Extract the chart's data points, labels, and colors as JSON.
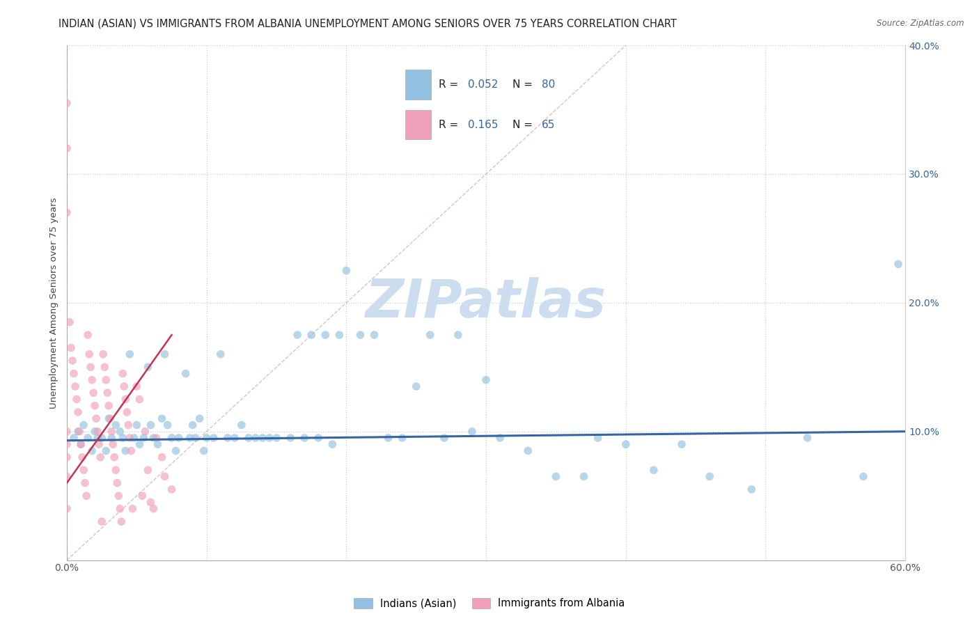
{
  "title": "INDIAN (ASIAN) VS IMMIGRANTS FROM ALBANIA UNEMPLOYMENT AMONG SENIORS OVER 75 YEARS CORRELATION CHART",
  "source": "Source: ZipAtlas.com",
  "ylabel": "Unemployment Among Seniors over 75 years",
  "xlim": [
    0,
    0.6
  ],
  "ylim": [
    0,
    0.4
  ],
  "xtick_vals": [
    0.0,
    0.1,
    0.2,
    0.3,
    0.4,
    0.5,
    0.6
  ],
  "xtick_labels": [
    "0.0%",
    "",
    "",
    "",
    "",
    "",
    "60.0%"
  ],
  "ytick_vals_right": [
    0.1,
    0.2,
    0.3,
    0.4
  ],
  "ytick_labels_right": [
    "10.0%",
    "20.0%",
    "30.0%",
    "40.0%"
  ],
  "color_blue": "#92c0e0",
  "color_pink": "#f0a0b8",
  "color_blue_dark": "#3465a4",
  "color_pink_dark": "#c83050",
  "color_diag": "#c8a0a8",
  "scatter_alpha": 0.65,
  "scatter_size": 70,
  "watermark_color": "#ccddf0",
  "blue_scatter_x": [
    0.005,
    0.008,
    0.01,
    0.012,
    0.015,
    0.018,
    0.02,
    0.022,
    0.025,
    0.028,
    0.03,
    0.032,
    0.035,
    0.038,
    0.04,
    0.042,
    0.045,
    0.048,
    0.05,
    0.052,
    0.055,
    0.058,
    0.06,
    0.062,
    0.065,
    0.068,
    0.07,
    0.072,
    0.075,
    0.078,
    0.08,
    0.085,
    0.088,
    0.09,
    0.092,
    0.095,
    0.098,
    0.1,
    0.105,
    0.11,
    0.115,
    0.12,
    0.125,
    0.13,
    0.135,
    0.14,
    0.145,
    0.15,
    0.16,
    0.165,
    0.17,
    0.175,
    0.18,
    0.185,
    0.19,
    0.195,
    0.2,
    0.21,
    0.22,
    0.23,
    0.24,
    0.25,
    0.26,
    0.27,
    0.28,
    0.29,
    0.3,
    0.31,
    0.33,
    0.35,
    0.37,
    0.38,
    0.4,
    0.42,
    0.44,
    0.46,
    0.49,
    0.53,
    0.57,
    0.595
  ],
  "blue_scatter_y": [
    0.095,
    0.1,
    0.09,
    0.105,
    0.095,
    0.085,
    0.1,
    0.095,
    0.095,
    0.085,
    0.11,
    0.095,
    0.105,
    0.1,
    0.095,
    0.085,
    0.16,
    0.095,
    0.105,
    0.09,
    0.095,
    0.15,
    0.105,
    0.095,
    0.09,
    0.11,
    0.16,
    0.105,
    0.095,
    0.085,
    0.095,
    0.145,
    0.095,
    0.105,
    0.095,
    0.11,
    0.085,
    0.095,
    0.095,
    0.16,
    0.095,
    0.095,
    0.105,
    0.095,
    0.095,
    0.095,
    0.095,
    0.095,
    0.095,
    0.175,
    0.095,
    0.175,
    0.095,
    0.175,
    0.09,
    0.175,
    0.225,
    0.175,
    0.175,
    0.095,
    0.095,
    0.135,
    0.175,
    0.095,
    0.175,
    0.1,
    0.14,
    0.095,
    0.085,
    0.065,
    0.065,
    0.095,
    0.09,
    0.07,
    0.09,
    0.065,
    0.055,
    0.095,
    0.065,
    0.23
  ],
  "pink_scatter_x": [
    0.0,
    0.0,
    0.0,
    0.0,
    0.0,
    0.0,
    0.0,
    0.0,
    0.002,
    0.003,
    0.004,
    0.005,
    0.006,
    0.007,
    0.008,
    0.009,
    0.01,
    0.011,
    0.012,
    0.013,
    0.014,
    0.015,
    0.016,
    0.017,
    0.018,
    0.019,
    0.02,
    0.021,
    0.022,
    0.023,
    0.024,
    0.025,
    0.026,
    0.027,
    0.028,
    0.029,
    0.03,
    0.031,
    0.032,
    0.033,
    0.034,
    0.035,
    0.036,
    0.037,
    0.038,
    0.039,
    0.04,
    0.041,
    0.042,
    0.043,
    0.044,
    0.045,
    0.046,
    0.047,
    0.05,
    0.052,
    0.054,
    0.056,
    0.058,
    0.06,
    0.062,
    0.064,
    0.068,
    0.07,
    0.075
  ],
  "pink_scatter_y": [
    0.355,
    0.32,
    0.27,
    0.1,
    0.09,
    0.08,
    0.065,
    0.04,
    0.185,
    0.165,
    0.155,
    0.145,
    0.135,
    0.125,
    0.115,
    0.1,
    0.09,
    0.08,
    0.07,
    0.06,
    0.05,
    0.175,
    0.16,
    0.15,
    0.14,
    0.13,
    0.12,
    0.11,
    0.1,
    0.09,
    0.08,
    0.03,
    0.16,
    0.15,
    0.14,
    0.13,
    0.12,
    0.11,
    0.1,
    0.09,
    0.08,
    0.07,
    0.06,
    0.05,
    0.04,
    0.03,
    0.145,
    0.135,
    0.125,
    0.115,
    0.105,
    0.095,
    0.085,
    0.04,
    0.135,
    0.125,
    0.05,
    0.1,
    0.07,
    0.045,
    0.04,
    0.095,
    0.08,
    0.065,
    0.055
  ],
  "blue_trend_x": [
    0.0,
    0.6
  ],
  "blue_trend_y": [
    0.093,
    0.1
  ],
  "pink_trend_x": [
    0.0,
    0.075
  ],
  "pink_trend_y": [
    0.06,
    0.175
  ],
  "diag_line_x": [
    0.0,
    0.4
  ],
  "diag_line_y": [
    0.0,
    0.4
  ]
}
